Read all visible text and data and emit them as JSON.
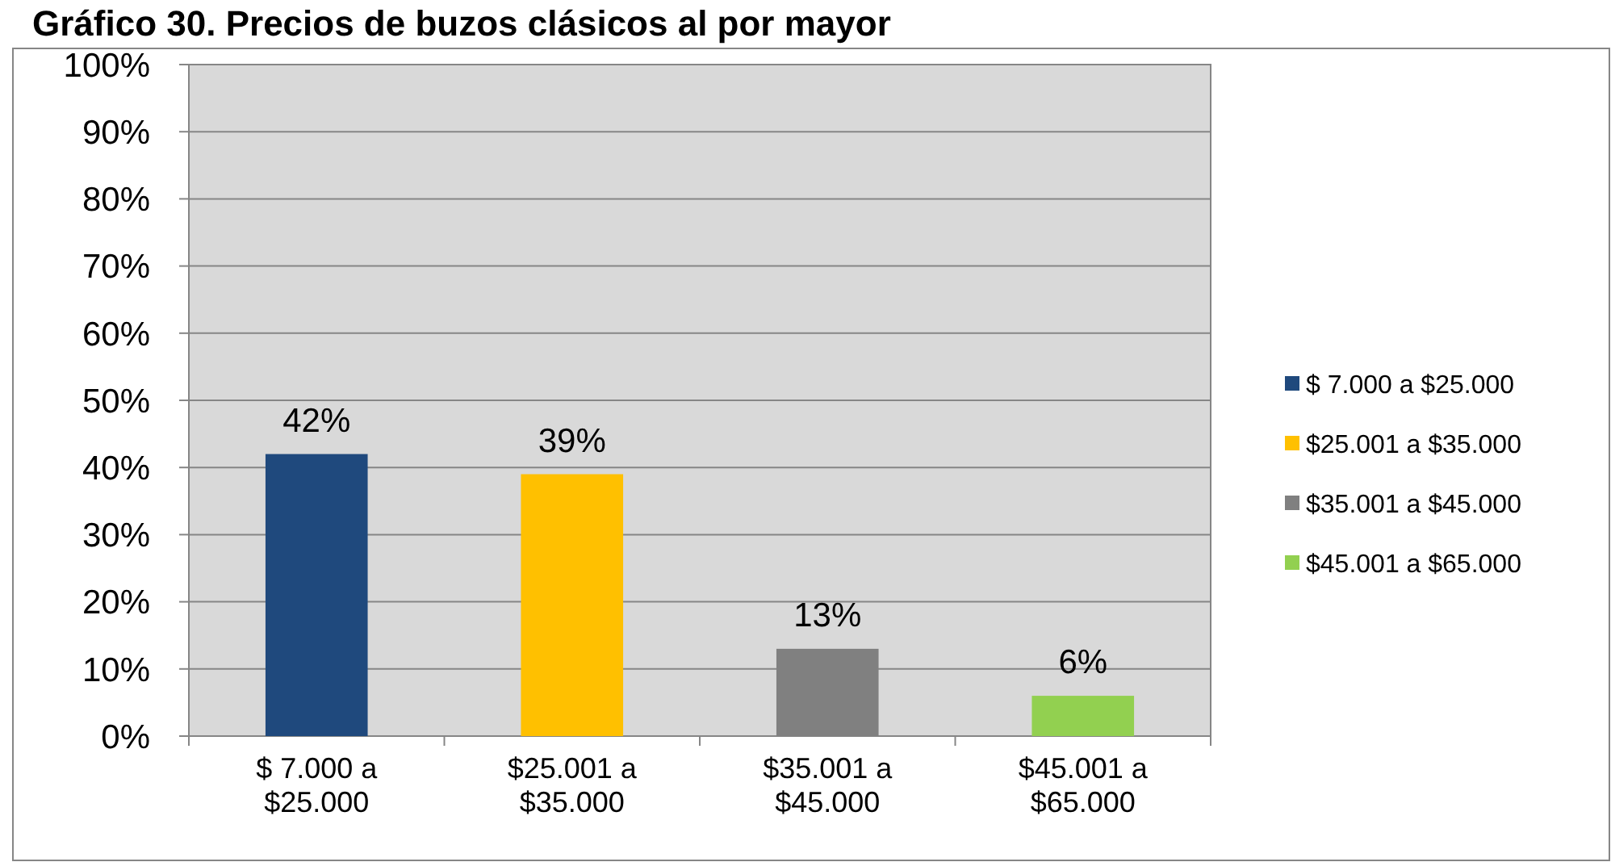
{
  "chart_data": {
    "type": "bar",
    "title": "Gráfico 30. Precios de buzos clásicos al por mayor",
    "categories": [
      "$ 7.000 a $25.000",
      "$25.001 a $35.000",
      "$35.001 a $45.000",
      "$45.001 a $65.000"
    ],
    "series": [
      {
        "name": "$ 7.000 a $25.000",
        "color": "#1f497d",
        "values": [
          42,
          null,
          null,
          null
        ],
        "value_labels": [
          "42%",
          null,
          null,
          null
        ]
      },
      {
        "name": "$25.001 a $35.000",
        "color": "#ffc000",
        "values": [
          null,
          39,
          null,
          null
        ],
        "value_labels": [
          null,
          "39%",
          null,
          null
        ]
      },
      {
        "name": "$35.001 a $45.000",
        "color": "#808080",
        "values": [
          null,
          null,
          13,
          null
        ],
        "value_labels": [
          null,
          null,
          "13%",
          null
        ]
      },
      {
        "name": "$45.001 a $65.000",
        "color": "#92d050",
        "values": [
          null,
          null,
          null,
          6
        ],
        "value_labels": [
          null,
          null,
          null,
          "6%"
        ]
      }
    ],
    "ylim": [
      0,
      100
    ],
    "yticks": [
      {
        "value": 0,
        "label": "0%"
      },
      {
        "value": 10,
        "label": "10%"
      },
      {
        "value": 20,
        "label": "20%"
      },
      {
        "value": 30,
        "label": "30%"
      },
      {
        "value": 40,
        "label": "40%"
      },
      {
        "value": 50,
        "label": "50%"
      },
      {
        "value": 60,
        "label": "60%"
      },
      {
        "value": 70,
        "label": "70%"
      },
      {
        "value": 80,
        "label": "80%"
      },
      {
        "value": 90,
        "label": "90%"
      },
      {
        "value": 100,
        "label": "100%"
      }
    ],
    "grid": "y",
    "legend": "right"
  }
}
